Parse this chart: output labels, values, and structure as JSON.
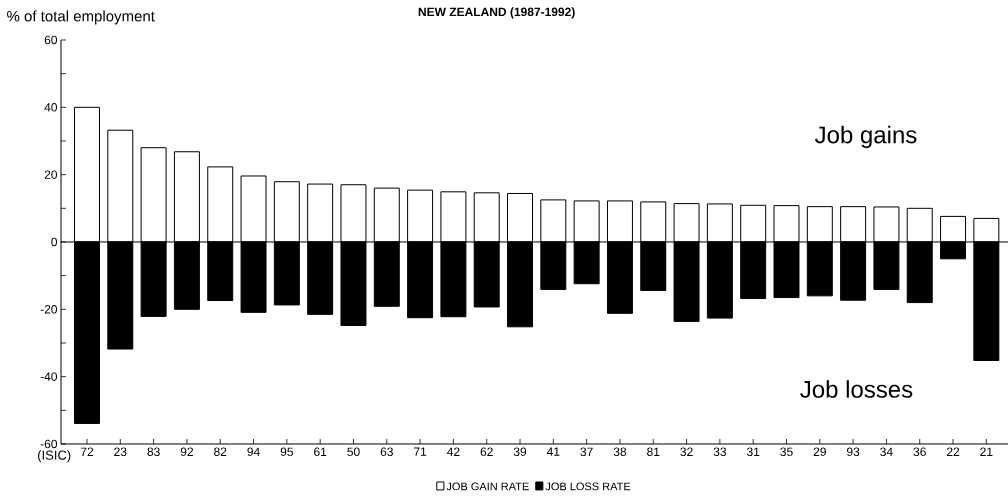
{
  "chart_data": {
    "type": "bar",
    "title": "NEW ZEALAND (1987-1992)",
    "ylabel": "% of total employment",
    "xlabel": "(ISIC)",
    "categories": [
      "72",
      "23",
      "83",
      "92",
      "82",
      "94",
      "95",
      "61",
      "50",
      "63",
      "71",
      "42",
      "62",
      "39",
      "41",
      "37",
      "38",
      "81",
      "32",
      "33",
      "31",
      "35",
      "29",
      "93",
      "34",
      "36",
      "22",
      "21"
    ],
    "series": [
      {
        "name": "JOB GAIN RATE",
        "color": "#ffffff",
        "values": [
          40,
          33.2,
          28,
          26.8,
          22.3,
          19.6,
          17.9,
          17.2,
          17.0,
          16.0,
          15.4,
          14.9,
          14.6,
          14.4,
          12.5,
          12.2,
          12.2,
          11.9,
          11.4,
          11.3,
          10.9,
          10.8,
          10.5,
          10.5,
          10.4,
          10.0,
          7.6,
          7.0
        ]
      },
      {
        "name": "JOB LOSS RATE",
        "color": "#000000",
        "values": [
          -53.9,
          -31.8,
          -22.1,
          -20.0,
          -17.4,
          -20.9,
          -18.7,
          -21.5,
          -24.8,
          -19.1,
          -22.5,
          -22.2,
          -19.3,
          -25.2,
          -14.1,
          -12.4,
          -21.2,
          -14.4,
          -23.6,
          -22.6,
          -16.8,
          -16.5,
          -16.0,
          -17.3,
          -14.1,
          -18.0,
          -5.0,
          -35.2
        ]
      }
    ],
    "ylim": [
      -60,
      60
    ],
    "yticks": [
      -60,
      {
        "value": -50,
        "label": null
      },
      -40,
      {
        "value": -30,
        "label": null
      },
      -20,
      {
        "value": -10,
        "label": null
      },
      0,
      {
        "value": 10,
        "label": null
      },
      20,
      {
        "value": 30,
        "label": null
      },
      40,
      {
        "value": 50,
        "label": null
      },
      60
    ],
    "ref_lines": [
      {
        "axis": "y",
        "value": 0
      }
    ],
    "annotations": [
      "Job gains",
      "Job losses"
    ],
    "legend": "bottom",
    "stacked": true
  }
}
